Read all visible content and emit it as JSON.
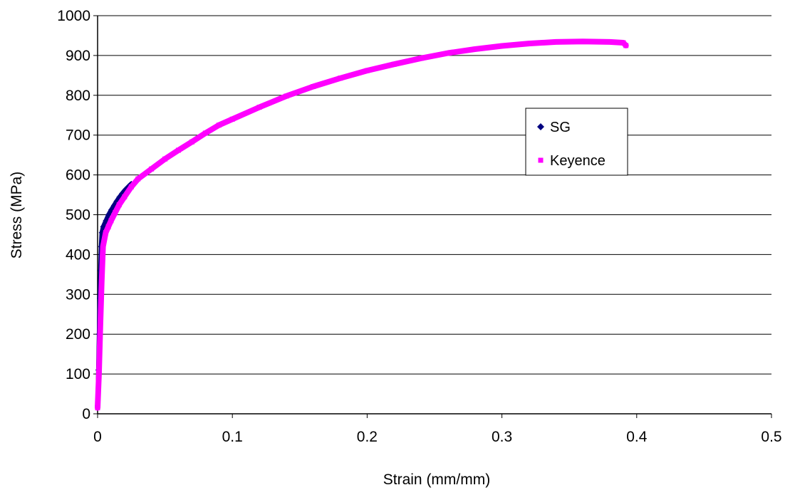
{
  "chart_data": {
    "type": "scatter",
    "title": "",
    "xlabel": "Strain (mm/mm)",
    "ylabel": "Stress (MPa)",
    "xlim": [
      0,
      0.5
    ],
    "ylim": [
      0,
      1000
    ],
    "x_ticks": [
      0,
      0.1,
      0.2,
      0.3,
      0.4,
      0.5
    ],
    "x_tick_labels": [
      "0",
      "0.1",
      "0.2",
      "0.3",
      "0.4",
      "0.5"
    ],
    "y_ticks": [
      0,
      100,
      200,
      300,
      400,
      500,
      600,
      700,
      800,
      900,
      1000
    ],
    "y_tick_labels": [
      "0",
      "100",
      "200",
      "300",
      "400",
      "500",
      "600",
      "700",
      "800",
      "900",
      "1000"
    ],
    "grid": "horizontal",
    "legend_position": "right",
    "series": [
      {
        "name": "SG",
        "color": "#000080",
        "marker": "diamond",
        "x": [
          0.0,
          0.0005,
          0.001,
          0.0015,
          0.002,
          0.0025,
          0.003,
          0.004,
          0.006,
          0.008,
          0.01,
          0.012,
          0.014,
          0.016,
          0.018,
          0.02,
          0.022,
          0.024,
          0.025
        ],
        "y": [
          20,
          110,
          200,
          290,
          360,
          420,
          455,
          470,
          485,
          500,
          512,
          523,
          534,
          544,
          553,
          561,
          568,
          575,
          578
        ]
      },
      {
        "name": "Keyence",
        "color": "#FF00FF",
        "marker": "square",
        "x": [
          0.0,
          0.001,
          0.002,
          0.003,
          0.004,
          0.006,
          0.008,
          0.01,
          0.013,
          0.016,
          0.02,
          0.025,
          0.03,
          0.04,
          0.05,
          0.06,
          0.07,
          0.08,
          0.09,
          0.1,
          0.12,
          0.14,
          0.16,
          0.18,
          0.2,
          0.22,
          0.24,
          0.26,
          0.28,
          0.3,
          0.32,
          0.34,
          0.36,
          0.38,
          0.39,
          0.392
        ],
        "y": [
          15,
          100,
          220,
          330,
          420,
          455,
          470,
          485,
          505,
          525,
          545,
          570,
          590,
          615,
          640,
          662,
          683,
          705,
          725,
          740,
          770,
          798,
          822,
          843,
          862,
          878,
          893,
          906,
          916,
          924,
          930,
          934,
          935,
          934,
          932,
          925
        ]
      }
    ]
  }
}
